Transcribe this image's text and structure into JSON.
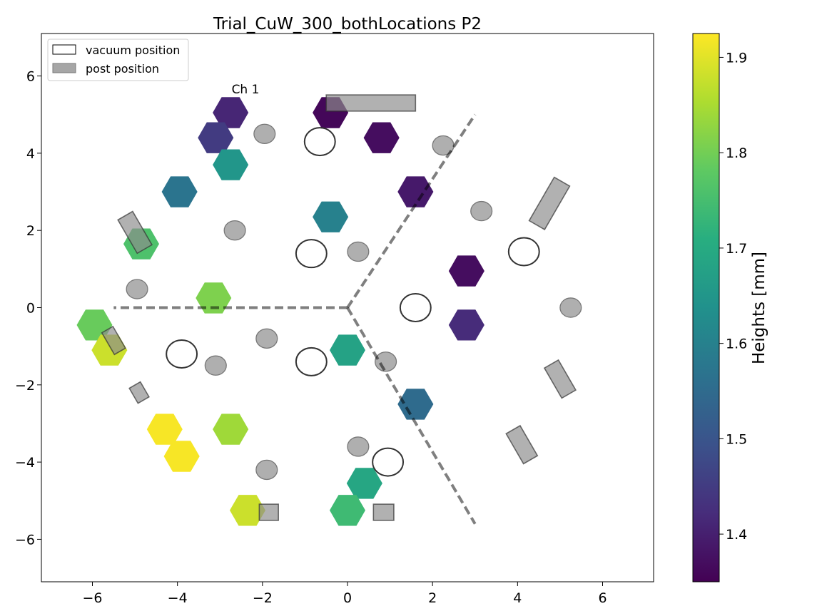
{
  "chart_data": {
    "type": "scatter",
    "title": "Trial_CuW_300_bothLocations P2",
    "xlim": [
      -7.2,
      7.2
    ],
    "ylim": [
      -7.1,
      7.1
    ],
    "xticks": [
      -6,
      -4,
      -2,
      0,
      2,
      4,
      6
    ],
    "yticks": [
      -6,
      -4,
      -2,
      0,
      2,
      4,
      6
    ],
    "xtick_labels": [
      "−6",
      "−4",
      "−2",
      "0",
      "2",
      "4",
      "6"
    ],
    "ytick_labels": [
      "−6",
      "−4",
      "−2",
      "0",
      "2",
      "4",
      "6"
    ],
    "legend": {
      "placement": "upper-left",
      "entries": [
        {
          "label": "vacuum position",
          "fill": "#ffffff"
        },
        {
          "label": "post position",
          "fill": "#a6a6a6"
        }
      ]
    },
    "annotation": {
      "text": "Ch 1",
      "x": -2.4,
      "y": 5.55
    },
    "colorbar": {
      "label": "Heights [mm]",
      "range": [
        1.35,
        1.925
      ],
      "ticks": [
        1.4,
        1.5,
        1.6,
        1.7,
        1.8,
        1.9
      ],
      "tick_labels": [
        "1.4",
        "1.5",
        "1.6",
        "1.7",
        "1.8",
        "1.9"
      ],
      "colormap": "viridis"
    },
    "hexagons": [
      {
        "x": -2.75,
        "y": 5.05,
        "height": 1.41
      },
      {
        "x": -3.1,
        "y": 4.4,
        "height": 1.45
      },
      {
        "x": -2.75,
        "y": 3.7,
        "height": 1.65
      },
      {
        "x": -3.95,
        "y": 3.0,
        "height": 1.57
      },
      {
        "x": -4.85,
        "y": 1.65,
        "height": 1.76
      },
      {
        "x": -3.15,
        "y": 0.25,
        "height": 1.81
      },
      {
        "x": -5.95,
        "y": -0.45,
        "height": 1.79
      },
      {
        "x": -5.6,
        "y": -1.1,
        "height": 1.88
      },
      {
        "x": -4.3,
        "y": -3.15,
        "height": 1.92
      },
      {
        "x": -3.9,
        "y": -3.85,
        "height": 1.92
      },
      {
        "x": -2.75,
        "y": -3.15,
        "height": 1.84
      },
      {
        "x": -2.35,
        "y": -5.25,
        "height": 1.88
      },
      {
        "x": -0.4,
        "y": 5.05,
        "height": 1.36
      },
      {
        "x": 0.8,
        "y": 4.4,
        "height": 1.37
      },
      {
        "x": 1.6,
        "y": 3.0,
        "height": 1.39
      },
      {
        "x": -0.4,
        "y": 2.35,
        "height": 1.6
      },
      {
        "x": 2.8,
        "y": 0.95,
        "height": 1.37
      },
      {
        "x": 2.8,
        "y": -0.45,
        "height": 1.42
      },
      {
        "x": 0.0,
        "y": -1.1,
        "height": 1.68
      },
      {
        "x": 1.6,
        "y": -2.5,
        "height": 1.55
      },
      {
        "x": 0.4,
        "y": -4.55,
        "height": 1.69
      },
      {
        "x": 0.0,
        "y": -5.25,
        "height": 1.74
      }
    ],
    "vacuum_positions": [
      {
        "x": -0.65,
        "y": 4.3
      },
      {
        "x": -0.85,
        "y": 1.4
      },
      {
        "x": 1.6,
        "y": 0.0
      },
      {
        "x": 4.15,
        "y": 1.45
      },
      {
        "x": -3.9,
        "y": -1.2
      },
      {
        "x": -0.85,
        "y": -1.4
      },
      {
        "x": 0.95,
        "y": -4.0
      }
    ],
    "post_circles": [
      {
        "x": -1.95,
        "y": 4.5
      },
      {
        "x": 2.25,
        "y": 4.2
      },
      {
        "x": -2.65,
        "y": 2.0
      },
      {
        "x": 0.25,
        "y": 1.45
      },
      {
        "x": 3.15,
        "y": 2.5
      },
      {
        "x": -4.95,
        "y": 0.48
      },
      {
        "x": 5.25,
        "y": 0.0
      },
      {
        "x": -1.9,
        "y": -0.8
      },
      {
        "x": -3.1,
        "y": -1.5
      },
      {
        "x": 0.9,
        "y": -1.4
      },
      {
        "x": 0.25,
        "y": -3.6
      },
      {
        "x": -1.9,
        "y": -4.2
      }
    ],
    "post_rects": [
      {
        "x": 0.55,
        "y": 5.3,
        "w": 2.1,
        "h": 0.42,
        "angle": 0
      },
      {
        "x": 4.75,
        "y": 2.7,
        "w": 0.42,
        "h": 1.3,
        "angle": 30
      },
      {
        "x": -5.0,
        "y": 1.95,
        "w": 0.4,
        "h": 1.0,
        "angle": -30
      },
      {
        "x": -5.5,
        "y": -0.85,
        "w": 0.3,
        "h": 0.65,
        "angle": -30
      },
      {
        "x": 5.0,
        "y": -1.85,
        "w": 0.38,
        "h": 0.9,
        "angle": -30
      },
      {
        "x": -4.9,
        "y": -2.2,
        "w": 0.3,
        "h": 0.45,
        "angle": -30
      },
      {
        "x": 4.1,
        "y": -3.55,
        "w": 0.38,
        "h": 0.9,
        "angle": -30
      },
      {
        "x": -1.85,
        "y": -5.3,
        "w": 0.45,
        "h": 0.42,
        "angle": 0
      },
      {
        "x": 0.85,
        "y": -5.3,
        "w": 0.48,
        "h": 0.42,
        "angle": 0
      }
    ],
    "dividers": [
      {
        "from": [
          0,
          0
        ],
        "to": [
          -5.5,
          0
        ]
      },
      {
        "from": [
          0,
          0
        ],
        "to": [
          3.0,
          5.0
        ]
      },
      {
        "from": [
          0,
          0
        ],
        "to": [
          3.0,
          -5.6
        ]
      }
    ]
  }
}
